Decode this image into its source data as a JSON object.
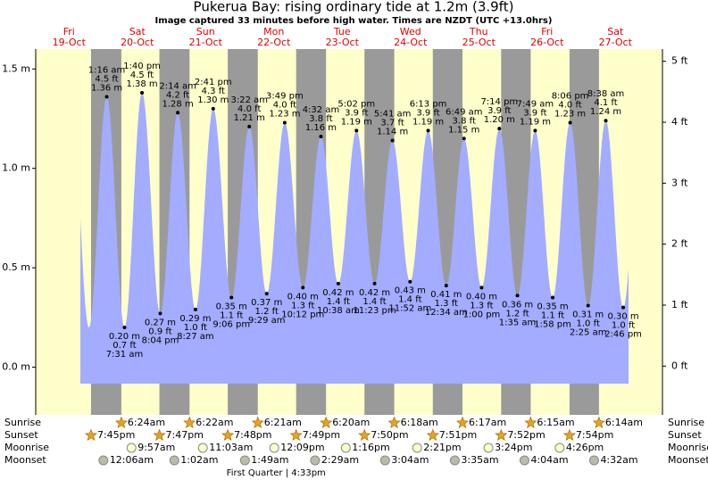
{
  "chart_data": {
    "type": "area",
    "title": "Pukerua Bay: rising  ordinary tide at 1.2m (3.9ft)",
    "subtitle": "Image captured 33 minutes before high water. Times are NZDT (UTC +13.0hrs)",
    "ylim": [
      -0.24,
      1.6
    ],
    "yticks": [
      {
        "value": 0,
        "label": "0.0 m"
      },
      {
        "value": 0.5,
        "label": "0.5 m"
      },
      {
        "value": 1,
        "label": "1.0 m"
      },
      {
        "value": 1.5,
        "label": "1.5 m"
      }
    ],
    "y2lim": [
      -0.8,
      5.2
    ],
    "y2ticks": [
      {
        "value": 0,
        "label": "0 ft"
      },
      {
        "value": 1,
        "label": "1 ft"
      },
      {
        "value": 2,
        "label": "2 ft"
      },
      {
        "value": 3,
        "label": "3 ft"
      },
      {
        "value": 4,
        "label": "4 ft"
      },
      {
        "value": 5,
        "label": "5 ft"
      }
    ],
    "color": "#a3acff",
    "day_color": "#ffffcc",
    "night_color": "#9a9a9a",
    "row_labels": [
      "Sunrise",
      "Sunset",
      "Moonrise",
      "Moonset"
    ],
    "days": [
      {
        "dow": "Fri",
        "date": "19-Oct",
        "sunset": "7:45pm",
        "tides": []
      },
      {
        "dow": "Sat",
        "date": "20-Oct",
        "sunrise": "6:24am",
        "sunset": "7:47pm",
        "moonrise": "9:57am",
        "moonset": "12:06am",
        "tides": [
          {
            "time": "1:16 am",
            "height": 1.36,
            "height_label": "1.36 m",
            "feet_label": "4.5 ft"
          },
          {
            "time": "7:31 am",
            "height": 0.2,
            "height_label": "0.20 m",
            "feet_label": "0.7 ft"
          },
          {
            "time": "1:40 pm",
            "height": 1.38,
            "height_label": "1.38 m",
            "feet_label": "4.5 ft"
          },
          {
            "time": "8:04 pm",
            "height": 0.27,
            "height_label": "0.27 m",
            "feet_label": "0.9 ft"
          }
        ]
      },
      {
        "dow": "Sun",
        "date": "21-Oct",
        "sunrise": "6:22am",
        "sunset": "7:48pm",
        "moonrise": "11:03am",
        "moonset": "1:02am",
        "tides": [
          {
            "time": "2:14 am",
            "height": 1.28,
            "height_label": "1.28 m",
            "feet_label": "4.2 ft"
          },
          {
            "time": "8:27 am",
            "height": 0.29,
            "height_label": "0.29 m",
            "feet_label": "1.0 ft"
          },
          {
            "time": "2:41 pm",
            "height": 1.3,
            "height_label": "1.30 m",
            "feet_label": "4.3 ft"
          },
          {
            "time": "9:06 pm",
            "height": 0.35,
            "height_label": "0.35 m",
            "feet_label": "1.1 ft"
          }
        ]
      },
      {
        "dow": "Mon",
        "date": "22-Oct",
        "sunrise": "6:21am",
        "sunset": "7:49pm",
        "moonrise": "12:09pm",
        "moonset": "1:49am",
        "moon_phase": "First Quarter | 4:33pm",
        "tides": [
          {
            "time": "3:22 am",
            "height": 1.21,
            "height_label": "1.21 m",
            "feet_label": "4.0 ft"
          },
          {
            "time": "9:29 am",
            "height": 0.37,
            "height_label": "0.37 m",
            "feet_label": "1.2 ft"
          },
          {
            "time": "3:49 pm",
            "height": 1.23,
            "height_label": "1.23 m",
            "feet_label": "4.0 ft"
          },
          {
            "time": "10:12 pm",
            "height": 0.4,
            "height_label": "0.40 m",
            "feet_label": "1.3 ft"
          }
        ]
      },
      {
        "dow": "Tue",
        "date": "23-Oct",
        "sunrise": "6:20am",
        "sunset": "7:50pm",
        "moonrise": "1:16pm",
        "moonset": "2:29am",
        "tides": [
          {
            "time": "4:32 am",
            "height": 1.16,
            "height_label": "1.16 m",
            "feet_label": "3.8 ft"
          },
          {
            "time": "10:38 am",
            "height": 0.42,
            "height_label": "0.42 m",
            "feet_label": "1.4 ft"
          },
          {
            "time": "5:02 pm",
            "height": 1.19,
            "height_label": "1.19 m",
            "feet_label": "3.9 ft"
          },
          {
            "time": "11:23 pm",
            "height": 0.42,
            "height_label": "0.42 m",
            "feet_label": "1.4 ft"
          }
        ]
      },
      {
        "dow": "Wed",
        "date": "24-Oct",
        "sunrise": "6:18am",
        "sunset": "7:51pm",
        "moonrise": "2:21pm",
        "moonset": "3:04am",
        "tides": [
          {
            "time": "5:41 am",
            "height": 1.14,
            "height_label": "1.14 m",
            "feet_label": "3.7 ft"
          },
          {
            "time": "11:52 am",
            "height": 0.43,
            "height_label": "0.43 m",
            "feet_label": "1.4 ft"
          },
          {
            "time": "6:13 pm",
            "height": 1.19,
            "height_label": "1.19 m",
            "feet_label": "3.9 ft"
          }
        ]
      },
      {
        "dow": "Thu",
        "date": "25-Oct",
        "sunrise": "6:17am",
        "sunset": "7:52pm",
        "moonrise": "3:24pm",
        "moonset": "3:35am",
        "tides": [
          {
            "time": "12:34 am",
            "height": 0.41,
            "height_label": "0.41 m",
            "feet_label": "1.3 ft"
          },
          {
            "time": "6:49 am",
            "height": 1.15,
            "height_label": "1.15 m",
            "feet_label": "3.8 ft"
          },
          {
            "time": "1:00 pm",
            "height": 0.4,
            "height_label": "0.40 m",
            "feet_label": "1.3 ft"
          },
          {
            "time": "7:14 pm",
            "height": 1.2,
            "height_label": "1.20 m",
            "feet_label": "3.9 ft"
          }
        ]
      },
      {
        "dow": "Fri",
        "date": "26-Oct",
        "sunrise": "6:15am",
        "sunset": "7:54pm",
        "moonrise": "4:26pm",
        "moonset": "4:04am",
        "tides": [
          {
            "time": "1:35 am",
            "height": 0.36,
            "height_label": "0.36 m",
            "feet_label": "1.2 ft"
          },
          {
            "time": "7:49 am",
            "height": 1.19,
            "height_label": "1.19 m",
            "feet_label": "3.9 ft"
          },
          {
            "time": "1:58 pm",
            "height": 0.35,
            "height_label": "0.35 m",
            "feet_label": "1.1 ft"
          },
          {
            "time": "8:06 pm",
            "height": 1.23,
            "height_label": "1.23 m",
            "feet_label": "4.0 ft"
          }
        ]
      },
      {
        "dow": "Sat",
        "date": "27-Oct",
        "sunrise": "6:14am",
        "moonset": "4:32am",
        "tides": [
          {
            "time": "2:25 am",
            "height": 0.31,
            "height_label": "0.31 m",
            "feet_label": "1.0 ft"
          },
          {
            "time": "8:38 am",
            "height": 1.24,
            "height_label": "1.24 m",
            "feet_label": "4.1 ft"
          },
          {
            "time": "2:46 pm",
            "height": 0.3,
            "height_label": "0.30 m",
            "feet_label": "1.0 ft"
          }
        ]
      }
    ]
  }
}
